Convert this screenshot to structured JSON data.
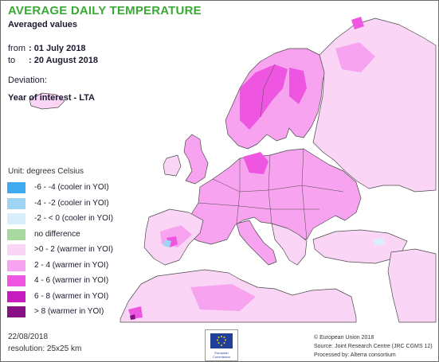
{
  "header": {
    "title": "AVERAGE DAILY TEMPERATURE",
    "subtitle": "Averaged values",
    "from_label": "from",
    "from_value": ": 01 July 2018",
    "to_label": "to",
    "to_value": ": 20 August 2018",
    "deviation_label": "Deviation:",
    "comparison": "Year of interest - LTA"
  },
  "legend": {
    "unit": "Unit: degrees Celsius",
    "items": [
      {
        "label": "-6 - -4 (cooler in YOI)",
        "color": "#3eaaf0"
      },
      {
        "label": "-4 - -2 (cooler in YOI)",
        "color": "#9fd3f4"
      },
      {
        "label": "-2 - < 0 (cooler in YOI)",
        "color": "#d8eefb"
      },
      {
        "label": "no difference",
        "color": "#a8d8a0"
      },
      {
        "label": ">0 - 2 (warmer in YOI)",
        "color": "#fbd5f6"
      },
      {
        "label": "2 - 4 (warmer in YOI)",
        "color": "#f7a3ef"
      },
      {
        "label": "4 - 6 (warmer in YOI)",
        "color": "#ee56e1"
      },
      {
        "label": "6 - 8 (warmer in YOI)",
        "color": "#c61cc0"
      },
      {
        "label": "> 8 (warmer in YOI)",
        "color": "#870f86"
      }
    ]
  },
  "footer": {
    "date": "22/08/2018",
    "resolution": "resolution: 25x25 km",
    "logo_text": "European Commission",
    "copyright": "© European Union 2018",
    "source": "Source: Joint Research Centre (JRC CGMS 12)",
    "processed": "Processed by: Alterra consortium"
  },
  "colors": {
    "title": "#3aa935",
    "land_base": "#fbd5f6",
    "land_warm": "#f7a3ef",
    "land_hot": "#ee56e1",
    "border": "#3a3a3a"
  }
}
